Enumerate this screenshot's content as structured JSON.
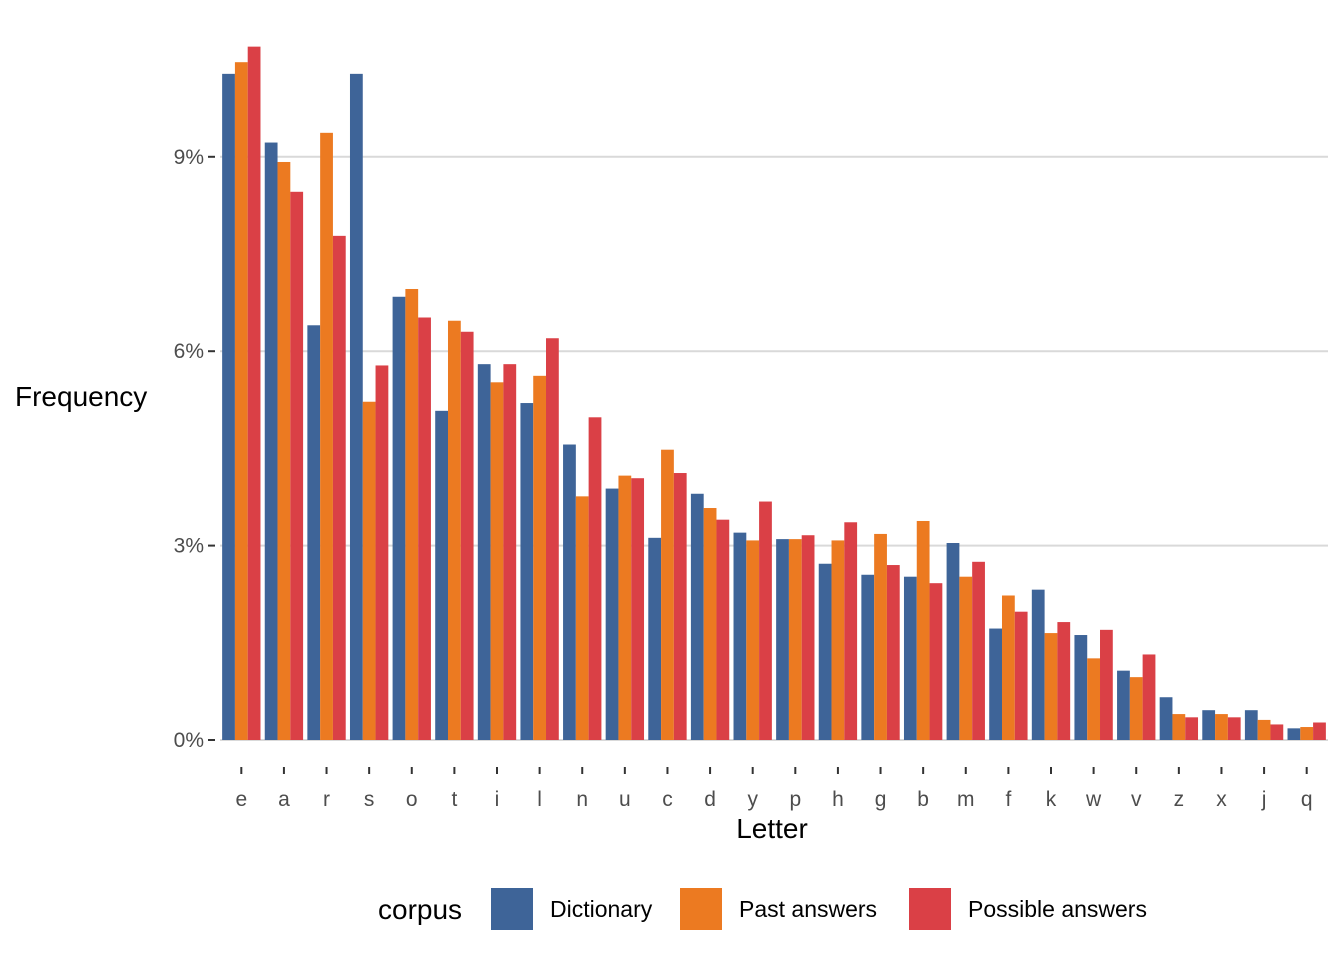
{
  "chart_data": {
    "type": "bar",
    "xlabel": "Letter",
    "ylabel": "Frequency",
    "ylim": [
      0,
      10.75
    ],
    "y_ticks": [
      0,
      3,
      6,
      9
    ],
    "y_tick_labels": [
      "0%",
      "3%",
      "6%",
      "9%"
    ],
    "grid": "horizontal major",
    "legend_position": "bottom",
    "legend_title": "corpus",
    "categories": [
      "e",
      "a",
      "r",
      "s",
      "o",
      "t",
      "i",
      "l",
      "n",
      "u",
      "c",
      "d",
      "y",
      "p",
      "h",
      "g",
      "b",
      "m",
      "f",
      "k",
      "w",
      "v",
      "z",
      "x",
      "j",
      "q"
    ],
    "series": [
      {
        "name": "Dictionary",
        "color": "#3e6498",
        "values": [
          10.28,
          9.22,
          6.4,
          10.28,
          6.84,
          5.08,
          5.8,
          5.2,
          4.56,
          3.88,
          3.12,
          3.8,
          3.2,
          3.1,
          2.72,
          2.55,
          2.52,
          3.04,
          1.72,
          2.32,
          1.62,
          1.07,
          0.66,
          0.46,
          0.46,
          0.18
        ]
      },
      {
        "name": "Past answers",
        "color": "#ec7a21",
        "values": [
          10.46,
          8.92,
          9.37,
          5.22,
          6.96,
          6.47,
          5.52,
          5.62,
          3.76,
          4.08,
          4.48,
          3.58,
          3.08,
          3.1,
          3.08,
          3.18,
          3.38,
          2.52,
          2.23,
          1.65,
          1.26,
          0.97,
          0.4,
          0.4,
          0.31,
          0.2
        ]
      },
      {
        "name": "Possible answers",
        "color": "#da4046",
        "values": [
          10.7,
          8.46,
          7.78,
          5.78,
          6.52,
          6.3,
          5.8,
          6.2,
          4.98,
          4.04,
          4.12,
          3.4,
          3.68,
          3.16,
          3.36,
          2.7,
          2.42,
          2.75,
          1.98,
          1.82,
          1.7,
          1.32,
          0.35,
          0.35,
          0.24,
          0.27
        ]
      }
    ]
  }
}
